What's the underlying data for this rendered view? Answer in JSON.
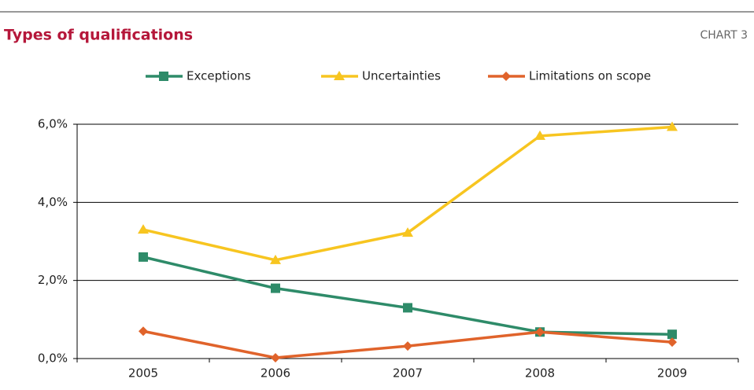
{
  "chart_data": {
    "type": "line",
    "title": "Types of qualifications",
    "label": "CHART 3",
    "categories": [
      "2005",
      "2006",
      "2007",
      "2008",
      "2009"
    ],
    "series": [
      {
        "name": "Exceptions",
        "color": "#2e8b69",
        "marker": "square",
        "values": [
          2.6,
          1.8,
          1.3,
          0.68,
          0.62
        ]
      },
      {
        "name": "Uncertainties",
        "color": "#f7c520",
        "marker": "triangle",
        "values": [
          3.3,
          2.52,
          3.22,
          5.7,
          5.93
        ]
      },
      {
        "name": "Limitations on scope",
        "color": "#e0632b",
        "marker": "diamond",
        "values": [
          0.7,
          0.02,
          0.32,
          0.68,
          0.42
        ]
      }
    ],
    "ylim": [
      0,
      6
    ],
    "yticks": [
      {
        "value": 0,
        "label": "0,0%"
      },
      {
        "value": 2,
        "label": "2,0%"
      },
      {
        "value": 4,
        "label": "4,0%"
      },
      {
        "value": 6,
        "label": "6,0%"
      }
    ],
    "grid": true,
    "legend": "top"
  }
}
